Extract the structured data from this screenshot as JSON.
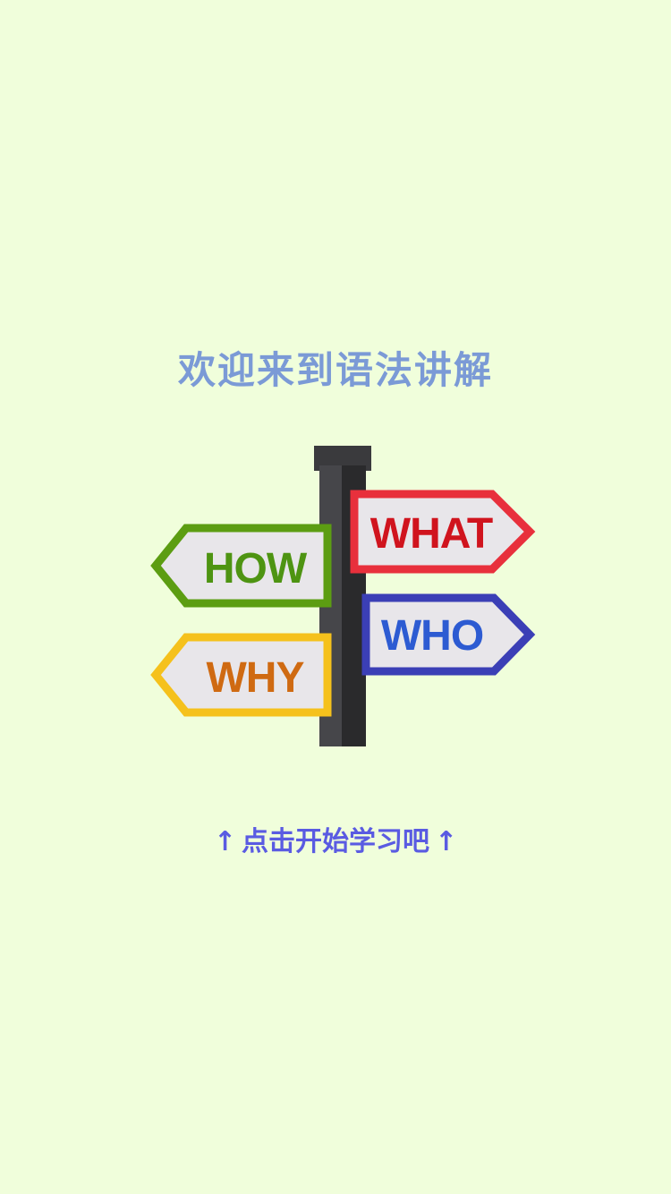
{
  "screen": {
    "background": "#f0fedb"
  },
  "title": "欢迎来到语法讲解",
  "signpost": {
    "signs": [
      {
        "label": "WHAT",
        "border_color": "#e8303c",
        "text_color": "#d0141e"
      },
      {
        "label": "HOW",
        "border_color": "#5c9d12",
        "text_color": "#4e9412"
      },
      {
        "label": "WHO",
        "border_color": "#3b3fb6",
        "text_color": "#2d5bd2"
      },
      {
        "label": "WHY",
        "border_color": "#f5c11c",
        "text_color": "#cf6a12"
      }
    ],
    "pole_color": "#3d3d40"
  },
  "start_hint": {
    "label": "点击开始学习吧",
    "left_arrow": "↑",
    "right_arrow": "↑"
  }
}
